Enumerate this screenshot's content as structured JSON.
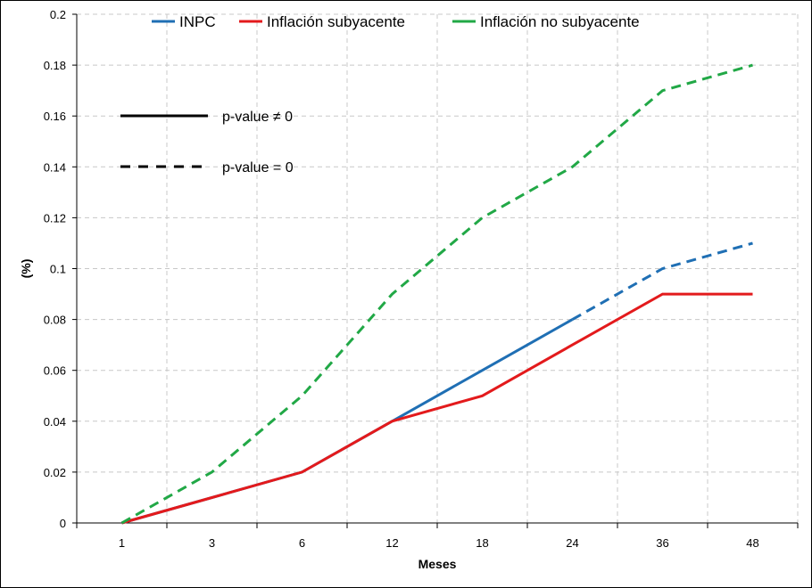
{
  "chart_data": {
    "type": "line",
    "categories": [
      "1",
      "3",
      "6",
      "12",
      "18",
      "24",
      "36",
      "48"
    ],
    "xlabel": "Meses",
    "ylabel": "(%)",
    "ylim": [
      0,
      0.2
    ],
    "y_ticks": [
      "0",
      "0.02",
      "0.04",
      "0.06",
      "0.08",
      "0.1",
      "0.12",
      "0.14",
      "0.16",
      "0.18",
      "0.2"
    ],
    "grid": true,
    "legend_position": "top",
    "series": [
      {
        "name": "INPC",
        "color": "#1f6fb4",
        "values": [
          0,
          0.01,
          0.02,
          0.04,
          0.06,
          0.08,
          0.1,
          0.11
        ],
        "dashed_from_index": 5
      },
      {
        "name": "Inflación subyacente",
        "color": "#e31a1c",
        "values": [
          0,
          0.01,
          0.02,
          0.04,
          0.05,
          0.07,
          0.09,
          0.09
        ],
        "dashed_from_index": null
      },
      {
        "name": "Inflación no subyacente",
        "color": "#21a846",
        "values": [
          0,
          0.02,
          0.05,
          0.09,
          0.12,
          0.14,
          0.17,
          0.18
        ],
        "dashed_from_index": 0
      }
    ],
    "line_style_notes": [
      {
        "style": "solid",
        "label": "p-value ≠ 0"
      },
      {
        "style": "dashed",
        "label": "p-value = 0"
      }
    ]
  }
}
